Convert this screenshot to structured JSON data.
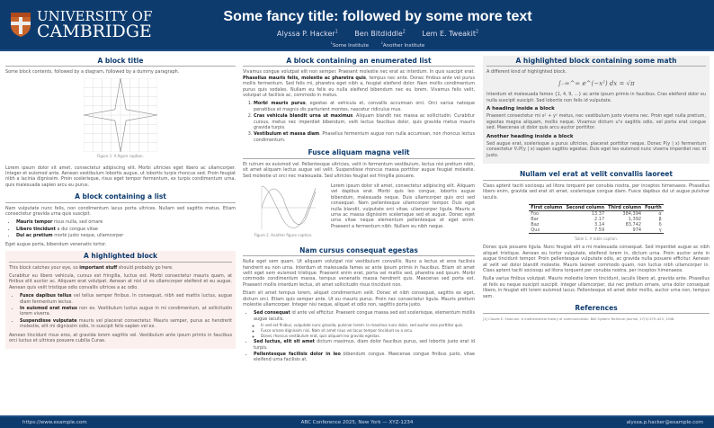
{
  "header": {
    "logo_line1": "UNIVERSITY OF",
    "logo_line2": "CAMBRIDGE",
    "title": "Some fancy title: followed by some more text",
    "authors": [
      {
        "name": "Alyssa P. Hacker",
        "sup": "1"
      },
      {
        "name": "Ben Bitdiddle",
        "sup": "2"
      },
      {
        "name": "Lem E. Tweakit",
        "sup": "2"
      }
    ],
    "institutes": [
      {
        "sup": "1",
        "name": "Some Institute"
      },
      {
        "sup": "2",
        "name": "Another Institute"
      }
    ]
  },
  "col1": {
    "b1": {
      "title": "A block title",
      "intro": "Some block contents, followed by a diagram, followed by a dummy paragraph.",
      "caption": "Figure 1. A figure caption.",
      "para": "Lorem ipsum dolor sit amet, consectetur adipiscing elit. Morbi ultricies eget libero ac ullamcorper. Integer et euismod ante. Aenean vestibulum lobortis augue, ut lobortis turpis rhoncus sed. Proin feugiat nibh a lacinia dignissim. Proin scelerisque, risus eget tempor fermentum, ex turpis condimentum urna, quis malesuada sapien arcu eu purus."
    },
    "b2": {
      "title": "A block containing a list",
      "intro": "Nam vulputate nunc felis, non condimentum lacus porta ultrices. Nullam sed sagittis metus. Etiam consectetur gravida urna quis suscipit.",
      "items": [
        {
          "b": "Mauris tempor",
          "t": " risus nulla, sed ornare"
        },
        {
          "b": "Libero tincidunt",
          "t": " a dui congue vitae"
        },
        {
          "b": "Dui ac pretium",
          "t": " morbi justo neque, ullamcorper"
        }
      ],
      "outro": "Eget augue porta, bibendum venenatis tortor."
    },
    "b3": {
      "title": "A highlighted block",
      "p1a": "This block catches your eye, so ",
      "p1b": "important stuff",
      "p1c": " should probably go here.",
      "p2": "Curabitur eu libero vehicula, cursus est fringilla, luctus est. Morbi consectetur mauris quam, at finibus elit auctor ac. Aliquam erat volutpat. Aenean at nisl ut ex ullamcorper eleifend et eu augue. Aenean quis velit tristique odio convallis ultrices a ac odio.",
      "items": [
        {
          "b": "Fusce dapibus tellus",
          "t": " vel tellus semper finibus. In consequat, nibh sed mattis luctus, augue diam fermentum lectus."
        },
        {
          "b": "In euismod erat metus",
          "t": " non ex. Vestibulum luctus augue in mi condimentum, at sollicitudin lorem viverra."
        },
        {
          "b": "Suspendisse vulputate",
          "t": " mauris vel placerat consectetur. Mauris semper, purus ac hendrerit molestie, elit mi dignissim odio, in suscipit felis sapien vel ex."
        }
      ],
      "outro": "Aenean tincidunt risus eros, at gravida lorem sagittis vel. Vestibulum ante ipsum primis in faucibus orci luctus et ultrices posuere cubilia Curae."
    }
  },
  "col2": {
    "b1": {
      "title": "A block containing an enumerated list",
      "p1a": "Vivamus congue volutpat elit non semper. Praesent molestie nec erat ac interdum. In quis suscipit erat. ",
      "p1b": "Phasellus mauris felis, molestie ac pharetra quis",
      "p1c": ", tempus nec ante. Donec finibus ante vel purus mollis fermentum. Sed felis mi, pharetra eget nibh a, feugiat eleifend dolor. Nam mollis condimentum purus quis sodales. Nullam eu felis eu nulla eleifend bibendum nec eu lorem. Vivamus felis velit, volutpat ut facilisis ac, commodo in metus.",
      "items": [
        {
          "b": "Morbi mauris purus",
          "t": ", egestas at vehicula et, convallis accumsan orci. Orci varius natoque penatibus et magnis dis parturient montes, nascetur ridiculus mus."
        },
        {
          "b": "Cras vehicula blandit urna ut maximus",
          "t": ". Aliquam blandit nec massa ac sollicitudin. Curabitur cursus, metus nec imperdiet bibendum, velit lectus faucibus dolor, quis gravida metus mauris gravida turpis."
        },
        {
          "b": "Vestibulum et massa diam",
          "t": ". Phasellus fermentum augue non nulla accumsan, non rhoncus lectus condimentum."
        }
      ]
    },
    "b2": {
      "title": "Fusce aliquam magna velit",
      "p1": "Et rutrum ex euismod vel. Pellentesque ultricies, velit in fermentum vestibulum, lectus nisi pretium nibh, sit amet aliquam lectus augue vel velit. Suspendisse rhoncus massa porttitor augue feugiat molestie. Sed molestie ut orci nec malesuada. Sed ultricies feugiat est fringilla posuere.",
      "caption": "Figure 2. Another figure caption.",
      "side": "Lorem ipsum dolor sit amet, consectetur adipiscing elit. Aliquam vel dapibus erat. Morbi quis leo congue, lobortis augue bibendum, malesuada neque. Duis ullamcorper quis orci sed consequat. Nam pellentesque ullamcorper tempor. Duis eget nulla blandit, vulputate orci vitae, ullamcorper ligula. Mauris a urna ac massa dignissim scelerisque sed et augue. Donec eget urna vitae neque elementum pellentesque et eget enim. Praesent a fermentum nibh. Nullam eu nibh neque."
    },
    "b3": {
      "title": "Nam cursus consequat egestas",
      "p1": "Nulla eget sem quam. Ut aliquam volutpat nisi vestibulum convallis. Nunc a lectus et eros facilisis hendrerit eu non urna. Interdum et malesuada fames ac ante ipsum primis in faucibus. Etiam sit amet velit eget sem euismod tristique. Praesent enim erat, porta vel mattis sed, pharetra sed ipsum. Morbi commodo condimentum massa, tempus venenatis massa hendrerit quis. Maecenas sed porta est. Praesent mollis interdum lectus, sit amet sollicitudin risus tincidunt non.",
      "p2": "Etiam sit amet tempus lorem, aliquet condimentum velit. Donec et nibh consequat, sagittis ex eget, dictum orci. Etiam quis semper ante. Ut eu mauris purus. Proin nec consectetur ligula. Mauris pretium molestie ullamcorper. Integer nisi neque, aliquet et odio non, sagittis porta justo.",
      "item1": {
        "b": "Sed consequat",
        "t": " id ante vel efficitur. Praesent congue massa sed est scelerisque, elementum mollis augue iaculis."
      },
      "sub": [
        "In sed est finibus, vulputate nunc gravida, pulvinar lorem. In maximus nunc dolor, sed auctor eros porttitor quis.",
        "Fusce ornare dignissim nisi. Nam sit amet risus vel lacus tempor tincidunt eu a arcu.",
        "Donec rhoncus vestibulum erat, quis aliquam leo gravida egestas."
      ],
      "item2": {
        "b": "Sed luctus, elit sit amet",
        "t": " dictum maximus, diam dolor faucibus purus, sed lobortis justo erat id turpis."
      },
      "item3": {
        "b": "Pellentesque facilisis dolor in leo",
        "t": " bibendum congue. Maecenas congue finibus justo, vitae eleifend urna facilisis at."
      }
    }
  },
  "col3": {
    "b1": {
      "title": "A highlighted block containing some math",
      "intro": "A different kind of highlighted block.",
      "equation": "∫₋∞^∞ e^(−x²) dx = √π",
      "p1": "Interdum et malesuada fames {1, 4, 9, …} ac ante ipsum primis in faucibus. Cras eleifend dolor eu nulla suscipit suscipit. Sed lobortis non felis id vulputate.",
      "h1": "A heading inside a block",
      "p2": "Praesent consectetur mi x² + y² metus, nec vestibulum justo viverra nec. Proin eget nulla pretium, egestas magna aliquam, mollis neque. Vivamus dictum uᵀv sagittis odio, vel porta erat congue sed. Maecenas ut dolor quis arcu auctor porttitor.",
      "h2": "Another heading inside a block",
      "p3": "Sed augue erat, scelerisque a purus ultricies, placerat porttitor neque. Donec P(y | x) fermentum consectetur ∇ₓP(y | x) sapien sagittis egestas. Duis eget leo euismod nunc viverra imperdiet nec id justo."
    },
    "b2": {
      "title": "Nullam vel erat at velit convallis laoreet",
      "p1": "Class aptent taciti sociosqu ad litora torquent per conubia nostra, per inceptos himenaeos. Phasellus libero enim, gravida sed erat sit amet, scelerisque congue diam. Fusce dapibus dui ut augue pulvinar iaculis.",
      "table": {
        "headers": [
          "First column",
          "Second column",
          "Third column",
          "Fourth"
        ],
        "rows": [
          [
            "Foo",
            "13.37",
            "384,394",
            "α"
          ],
          [
            "Bar",
            "2.17",
            "1,392",
            "β"
          ],
          [
            "Baz",
            "3.14",
            "83,742",
            "δ"
          ],
          [
            "Qux",
            "7.59",
            "974",
            "γ"
          ]
        ]
      },
      "caption": "Table 1. A table caption.",
      "p2": "Donec quis posuere ligula. Nunc feugiat elit a mi malesuada consequat. Sed imperdiet augue ac nibh aliquet tristique. Aenean eu tortor vulputate, eleifend lorem in, dictum urna. Proin auctor ante in augue tincidunt tempor. Proin pellentesque vulputate odio, ac gravida nulla posuere efficitur. Aenean at velit vel dolor blandit molestie. Mauris laoreet commodo quam, non luctus nibh ullamcorper in. Class aptent taciti sociosqu ad litora torquent per conubia nostra, per inceptos himenaeos.",
      "p3": "Nulla varius finibus volutpat. Mauris molestie lorem tincidunt, iaculis libero at, gravida ante. Phasellus at felis eu neque suscipit suscipit. Integer ullamcorper, dui nec pretium ornare, urna dolor consequat libero, in feugiat elit lorem euismod lacus. Pellentesque sit amet dolor mollis, auctor urna non, tempus sem."
    },
    "refs": {
      "title": "References",
      "items": [
        "[1]  Claude E. Shannon. A mathematical theory of communication. Bell System Technical Journal, 27(3):379–423, 1948."
      ]
    }
  },
  "footer": {
    "left": "https://www.example.com",
    "center": "ABC Conference 2025, New York — XYZ-1234",
    "right": "alyssa.p.hacker@example.com"
  },
  "colors": {
    "header": "#0d3b6e",
    "highlight": "#fcf0ee",
    "math_block": "#f0f0f0"
  }
}
